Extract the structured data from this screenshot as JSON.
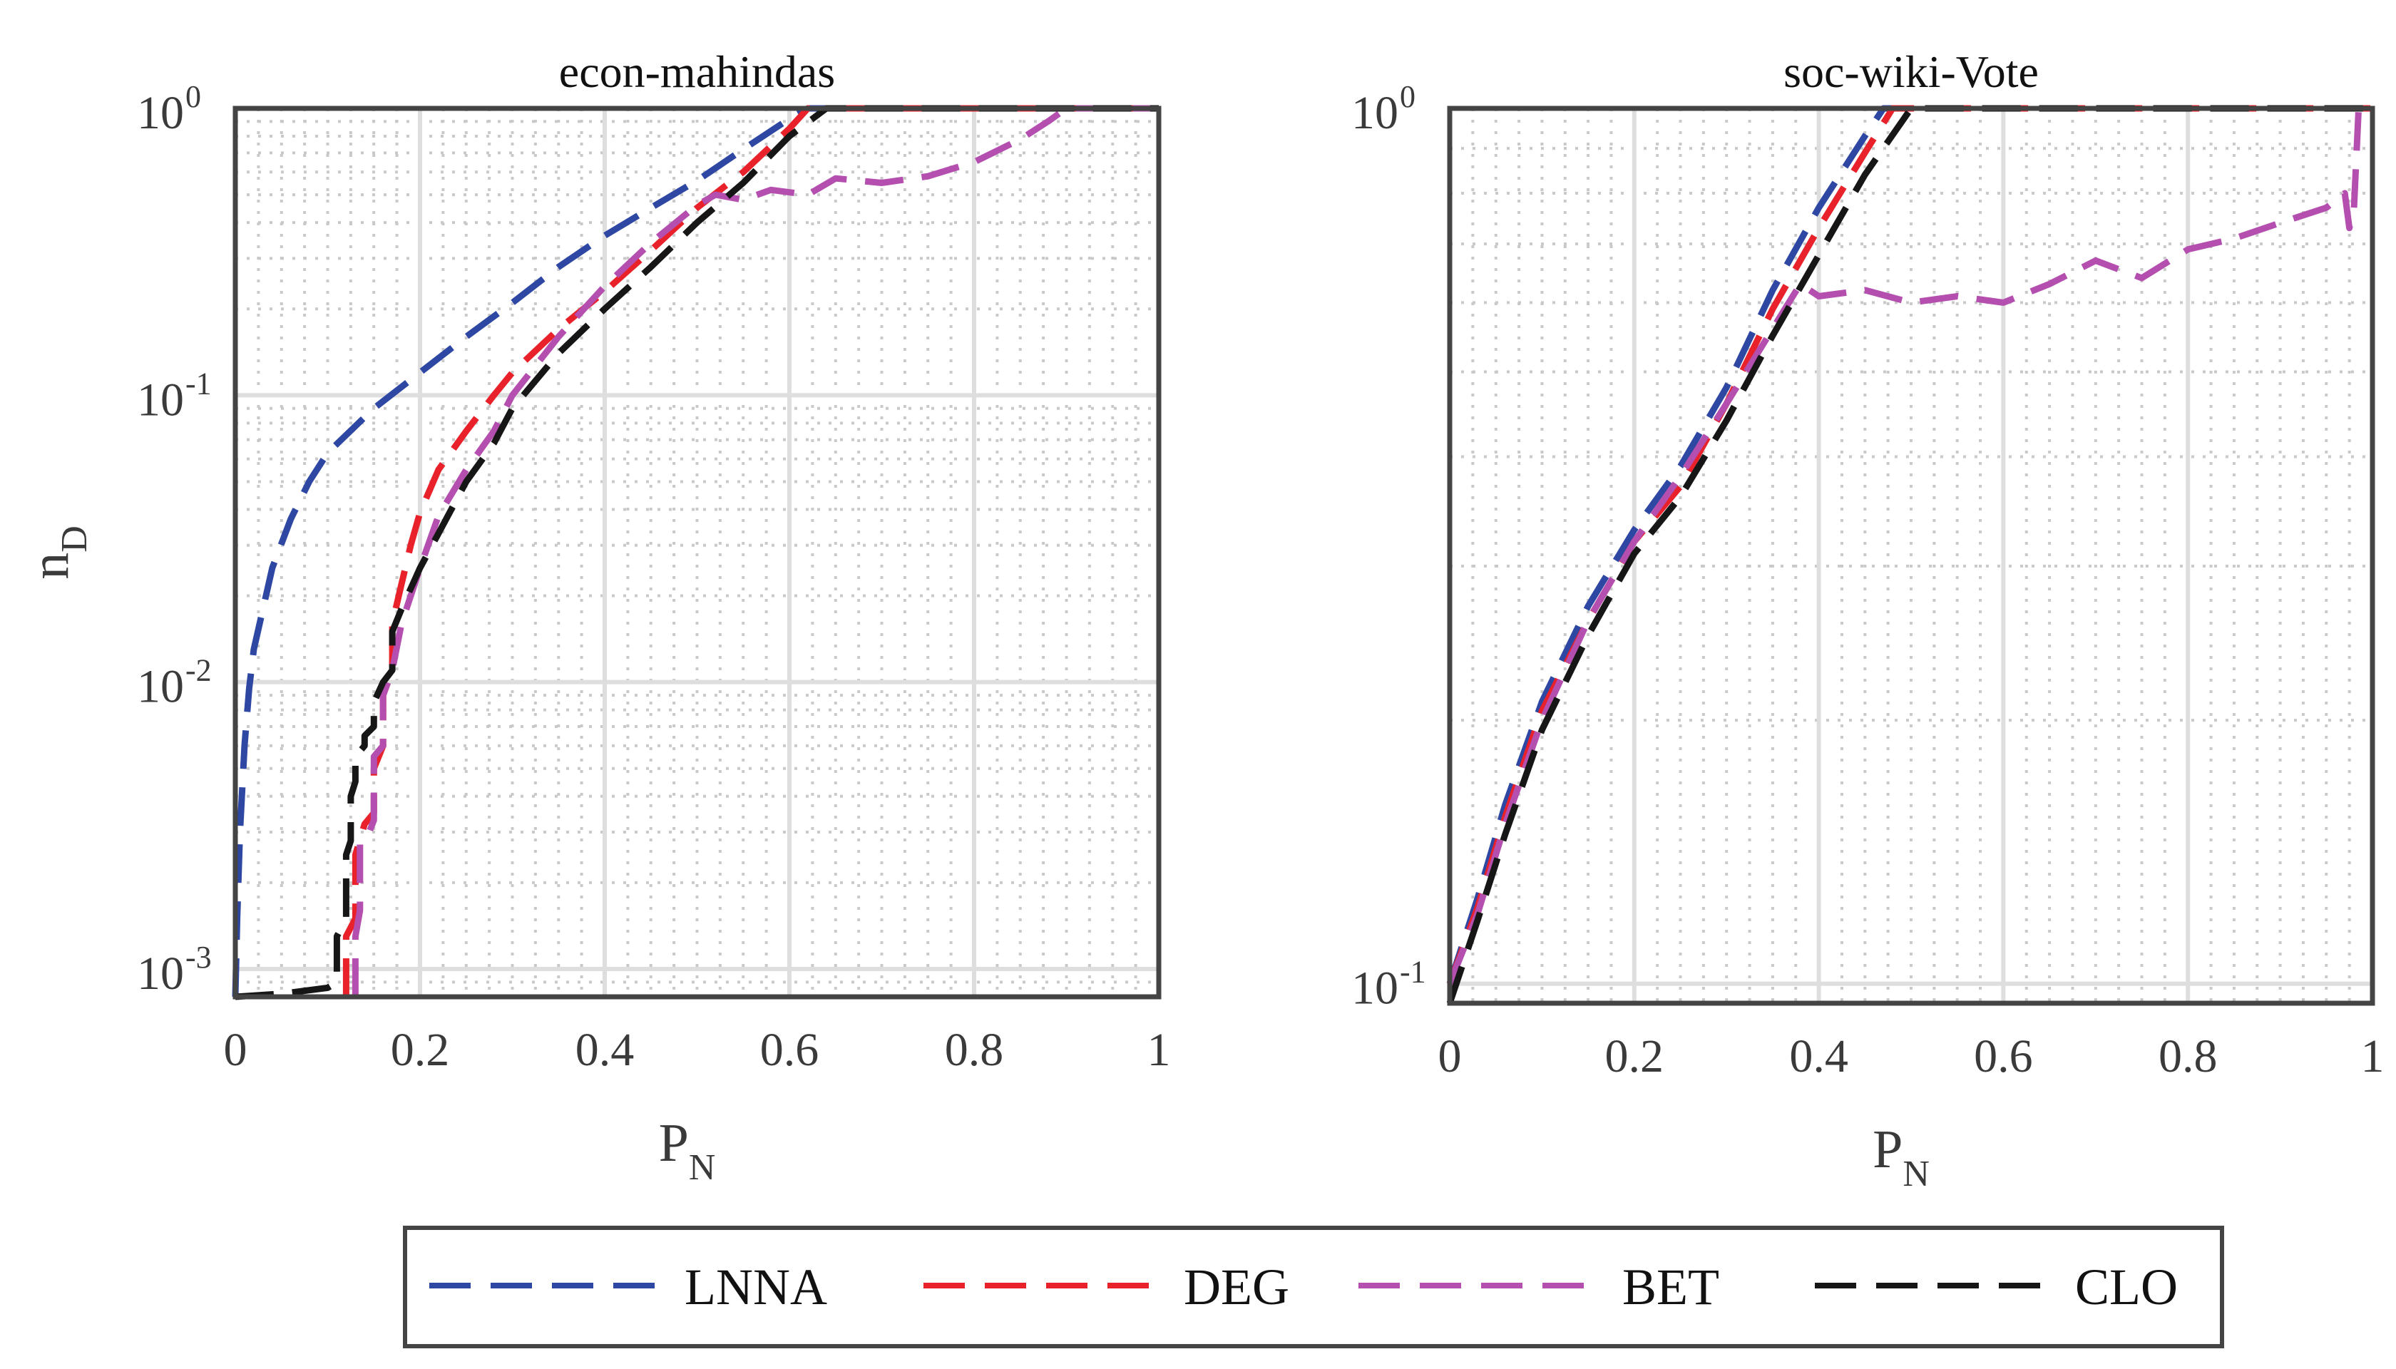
{
  "colors": {
    "LNNA": "#2e47a3",
    "DEG": "#e8212a",
    "BET": "#b44faf",
    "CLO": "#161616",
    "axis": "#444444",
    "grid": "#dedede"
  },
  "legend": {
    "placement": "bottom-center",
    "entries": [
      "LNNA",
      "DEG",
      "BET",
      "CLO"
    ]
  },
  "chart_data": [
    {
      "type": "line",
      "title": "econ-mahindas",
      "xlabel": "P",
      "xlabel_sub": "N",
      "ylabel": "n",
      "ylabel_sub": "D",
      "yscale": "log",
      "xlim": [
        0,
        1
      ],
      "ylim": [
        0.0008,
        1
      ],
      "xticks": [
        {
          "v": 0,
          "t": "0"
        },
        {
          "v": 0.2,
          "t": "0.2"
        },
        {
          "v": 0.4,
          "t": "0.4"
        },
        {
          "v": 0.6,
          "t": "0.6"
        },
        {
          "v": 0.8,
          "t": "0.8"
        },
        {
          "v": 1,
          "t": "1"
        }
      ],
      "yticks": [
        {
          "v": 0.001,
          "b": "10",
          "e": "-3"
        },
        {
          "v": 0.01,
          "b": "10",
          "e": "-2"
        },
        {
          "v": 0.1,
          "b": "10",
          "e": "-1"
        },
        {
          "v": 1,
          "b": "10",
          "e": "0"
        }
      ],
      "grid": true,
      "series": [
        {
          "name": "LNNA",
          "points": [
            [
              0,
              0.0008
            ],
            [
              0.002,
              0.0015
            ],
            [
              0.005,
              0.003
            ],
            [
              0.01,
              0.006
            ],
            [
              0.015,
              0.0095
            ],
            [
              0.02,
              0.013
            ],
            [
              0.04,
              0.025
            ],
            [
              0.06,
              0.037
            ],
            [
              0.08,
              0.05
            ],
            [
              0.1,
              0.063
            ],
            [
              0.15,
              0.09
            ],
            [
              0.2,
              0.12
            ],
            [
              0.25,
              0.16
            ],
            [
              0.3,
              0.21
            ],
            [
              0.35,
              0.28
            ],
            [
              0.4,
              0.36
            ],
            [
              0.45,
              0.45
            ],
            [
              0.5,
              0.56
            ],
            [
              0.55,
              0.72
            ],
            [
              0.6,
              0.92
            ],
            [
              0.62,
              1
            ],
            [
              1,
              1
            ]
          ]
        },
        {
          "name": "DEG",
          "points": [
            [
              0.12,
              0.0008
            ],
            [
              0.12,
              0.0013
            ],
            [
              0.13,
              0.0015
            ],
            [
              0.13,
              0.0025
            ],
            [
              0.14,
              0.0032
            ],
            [
              0.15,
              0.0035
            ],
            [
              0.15,
              0.005
            ],
            [
              0.16,
              0.006
            ],
            [
              0.16,
              0.009
            ],
            [
              0.17,
              0.011
            ],
            [
              0.17,
              0.016
            ],
            [
              0.18,
              0.022
            ],
            [
              0.19,
              0.03
            ],
            [
              0.2,
              0.039
            ],
            [
              0.22,
              0.055
            ],
            [
              0.25,
              0.075
            ],
            [
              0.28,
              0.1
            ],
            [
              0.3,
              0.12
            ],
            [
              0.35,
              0.17
            ],
            [
              0.4,
              0.23
            ],
            [
              0.45,
              0.32
            ],
            [
              0.5,
              0.45
            ],
            [
              0.55,
              0.6
            ],
            [
              0.6,
              0.85
            ],
            [
              0.62,
              1
            ],
            [
              1,
              1
            ]
          ]
        },
        {
          "name": "BET",
          "points": [
            [
              0.13,
              0.0008
            ],
            [
              0.13,
              0.0013
            ],
            [
              0.135,
              0.0016
            ],
            [
              0.135,
              0.0028
            ],
            [
              0.145,
              0.003
            ],
            [
              0.15,
              0.0033
            ],
            [
              0.15,
              0.0055
            ],
            [
              0.16,
              0.006
            ],
            [
              0.16,
              0.009
            ],
            [
              0.17,
              0.011
            ],
            [
              0.18,
              0.016
            ],
            [
              0.2,
              0.025
            ],
            [
              0.22,
              0.038
            ],
            [
              0.25,
              0.055
            ],
            [
              0.28,
              0.075
            ],
            [
              0.3,
              0.1
            ],
            [
              0.35,
              0.16
            ],
            [
              0.4,
              0.24
            ],
            [
              0.45,
              0.34
            ],
            [
              0.5,
              0.46
            ],
            [
              0.52,
              0.5
            ],
            [
              0.55,
              0.48
            ],
            [
              0.58,
              0.52
            ],
            [
              0.62,
              0.5
            ],
            [
              0.65,
              0.57
            ],
            [
              0.7,
              0.55
            ],
            [
              0.75,
              0.58
            ],
            [
              0.8,
              0.65
            ],
            [
              0.85,
              0.78
            ],
            [
              0.88,
              0.9
            ],
            [
              0.9,
              1
            ],
            [
              1,
              1
            ]
          ]
        },
        {
          "name": "CLO",
          "points": [
            [
              0,
              0.0008
            ],
            [
              0.05,
              0.00082
            ],
            [
              0.1,
              0.00086
            ],
            [
              0.11,
              0.0009
            ],
            [
              0.11,
              0.0013
            ],
            [
              0.12,
              0.0015
            ],
            [
              0.12,
              0.0025
            ],
            [
              0.125,
              0.0028
            ],
            [
              0.125,
              0.004
            ],
            [
              0.13,
              0.0045
            ],
            [
              0.13,
              0.0055
            ],
            [
              0.14,
              0.006
            ],
            [
              0.14,
              0.0065
            ],
            [
              0.15,
              0.007
            ],
            [
              0.15,
              0.0085
            ],
            [
              0.16,
              0.01
            ],
            [
              0.17,
              0.011
            ],
            [
              0.17,
              0.015
            ],
            [
              0.18,
              0.018
            ],
            [
              0.2,
              0.025
            ],
            [
              0.22,
              0.033
            ],
            [
              0.25,
              0.05
            ],
            [
              0.28,
              0.068
            ],
            [
              0.3,
              0.09
            ],
            [
              0.35,
              0.14
            ],
            [
              0.4,
              0.2
            ],
            [
              0.45,
              0.28
            ],
            [
              0.5,
              0.4
            ],
            [
              0.55,
              0.55
            ],
            [
              0.6,
              0.8
            ],
            [
              0.64,
              1
            ],
            [
              1,
              1
            ]
          ]
        }
      ]
    },
    {
      "type": "line",
      "title": "soc-wiki-Vote",
      "xlabel": "P",
      "xlabel_sub": "N",
      "ylabel": "",
      "ylabel_sub": "",
      "yscale": "log",
      "xlim": [
        0,
        1
      ],
      "ylim": [
        0.095,
        1
      ],
      "xticks": [
        {
          "v": 0,
          "t": "0"
        },
        {
          "v": 0.2,
          "t": "0.2"
        },
        {
          "v": 0.4,
          "t": "0.4"
        },
        {
          "v": 0.6,
          "t": "0.6"
        },
        {
          "v": 0.8,
          "t": "0.8"
        },
        {
          "v": 1,
          "t": "1"
        }
      ],
      "yticks": [
        {
          "v": 0.1,
          "b": "10",
          "e": "-1"
        },
        {
          "v": 1,
          "b": "10",
          "e": "0"
        }
      ],
      "grid": true,
      "series": [
        {
          "name": "LNNA",
          "points": [
            [
              0,
              0.1
            ],
            [
              0.03,
              0.125
            ],
            [
              0.06,
              0.16
            ],
            [
              0.1,
              0.21
            ],
            [
              0.15,
              0.27
            ],
            [
              0.2,
              0.33
            ],
            [
              0.25,
              0.39
            ],
            [
              0.3,
              0.48
            ],
            [
              0.35,
              0.62
            ],
            [
              0.4,
              0.77
            ],
            [
              0.45,
              0.93
            ],
            [
              0.47,
              1
            ],
            [
              1,
              1
            ]
          ]
        },
        {
          "name": "DEG",
          "points": [
            [
              0,
              0.1
            ],
            [
              0.03,
              0.122
            ],
            [
              0.06,
              0.155
            ],
            [
              0.1,
              0.205
            ],
            [
              0.15,
              0.26
            ],
            [
              0.2,
              0.32
            ],
            [
              0.25,
              0.37
            ],
            [
              0.3,
              0.46
            ],
            [
              0.35,
              0.59
            ],
            [
              0.4,
              0.73
            ],
            [
              0.45,
              0.89
            ],
            [
              0.48,
              1
            ],
            [
              1,
              1
            ]
          ]
        },
        {
          "name": "BET",
          "points": [
            [
              0,
              0.1
            ],
            [
              0.03,
              0.12
            ],
            [
              0.06,
              0.152
            ],
            [
              0.1,
              0.2
            ],
            [
              0.15,
              0.26
            ],
            [
              0.2,
              0.32
            ],
            [
              0.25,
              0.38
            ],
            [
              0.3,
              0.46
            ],
            [
              0.35,
              0.56
            ],
            [
              0.38,
              0.63
            ],
            [
              0.4,
              0.61
            ],
            [
              0.45,
              0.62
            ],
            [
              0.5,
              0.6
            ],
            [
              0.55,
              0.61
            ],
            [
              0.6,
              0.6
            ],
            [
              0.65,
              0.63
            ],
            [
              0.7,
              0.67
            ],
            [
              0.75,
              0.64
            ],
            [
              0.8,
              0.69
            ],
            [
              0.85,
              0.71
            ],
            [
              0.9,
              0.74
            ],
            [
              0.95,
              0.77
            ],
            [
              0.97,
              0.8
            ],
            [
              0.975,
              0.73
            ],
            [
              0.98,
              0.77
            ],
            [
              0.985,
              1
            ],
            [
              1,
              1
            ]
          ]
        },
        {
          "name": "CLO",
          "points": [
            [
              0,
              0.095
            ],
            [
              0.03,
              0.118
            ],
            [
              0.06,
              0.148
            ],
            [
              0.1,
              0.195
            ],
            [
              0.15,
              0.25
            ],
            [
              0.2,
              0.31
            ],
            [
              0.25,
              0.36
            ],
            [
              0.3,
              0.44
            ],
            [
              0.35,
              0.55
            ],
            [
              0.4,
              0.68
            ],
            [
              0.45,
              0.84
            ],
            [
              0.5,
              1
            ],
            [
              1,
              1
            ]
          ]
        }
      ]
    }
  ]
}
